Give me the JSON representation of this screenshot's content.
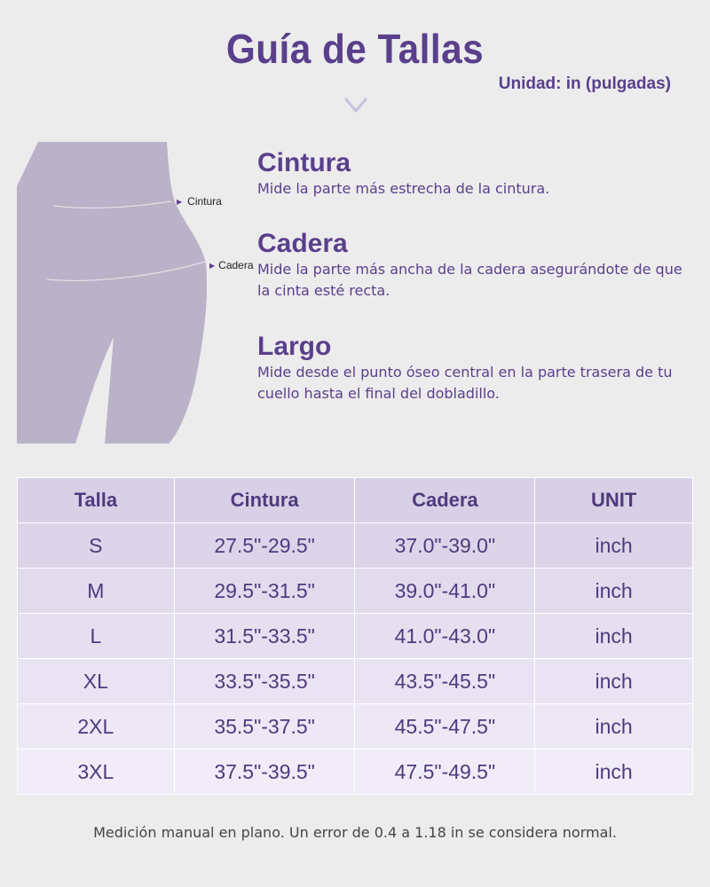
{
  "title": "Guía de Tallas",
  "unit_label": "Unidad: in (pulgadas)",
  "figure": {
    "waist_label": "Cintura",
    "hip_label": "Cadera"
  },
  "sections": [
    {
      "heading": "Cintura",
      "text": "Mide la parte más estrecha de la cintura."
    },
    {
      "heading": "Cadera",
      "text": "Mide la parte más ancha de la cadera asegurándote de que la cinta esté recta."
    },
    {
      "heading": "Largo",
      "text": "Mide desde el punto óseo central en la parte trasera de tu cuello hasta el final del dobladillo."
    }
  ],
  "table": {
    "headers": [
      "Talla",
      "Cintura",
      "Cadera",
      "UNIT"
    ],
    "rows": [
      [
        "S",
        "27.5\"-29.5\"",
        "37.0\"-39.0\"",
        "inch"
      ],
      [
        "M",
        "29.5\"-31.5\"",
        "39.0\"-41.0\"",
        "inch"
      ],
      [
        "L",
        "31.5\"-33.5\"",
        "41.0\"-43.0\"",
        "inch"
      ],
      [
        "XL",
        "33.5\"-35.5\"",
        "43.5\"-45.5\"",
        "inch"
      ],
      [
        "2XL",
        "35.5\"-37.5\"",
        "45.5\"-47.5\"",
        "inch"
      ],
      [
        "3XL",
        "37.5\"-39.5\"",
        "47.5\"-49.5\"",
        "inch"
      ]
    ]
  },
  "note": "Medición manual en plano. Un error de 0.4 a 1.18 in se considera normal.",
  "colors": {
    "accent": "#5a3f8c",
    "figure": "#b9b2c8",
    "background": "#ececec"
  }
}
